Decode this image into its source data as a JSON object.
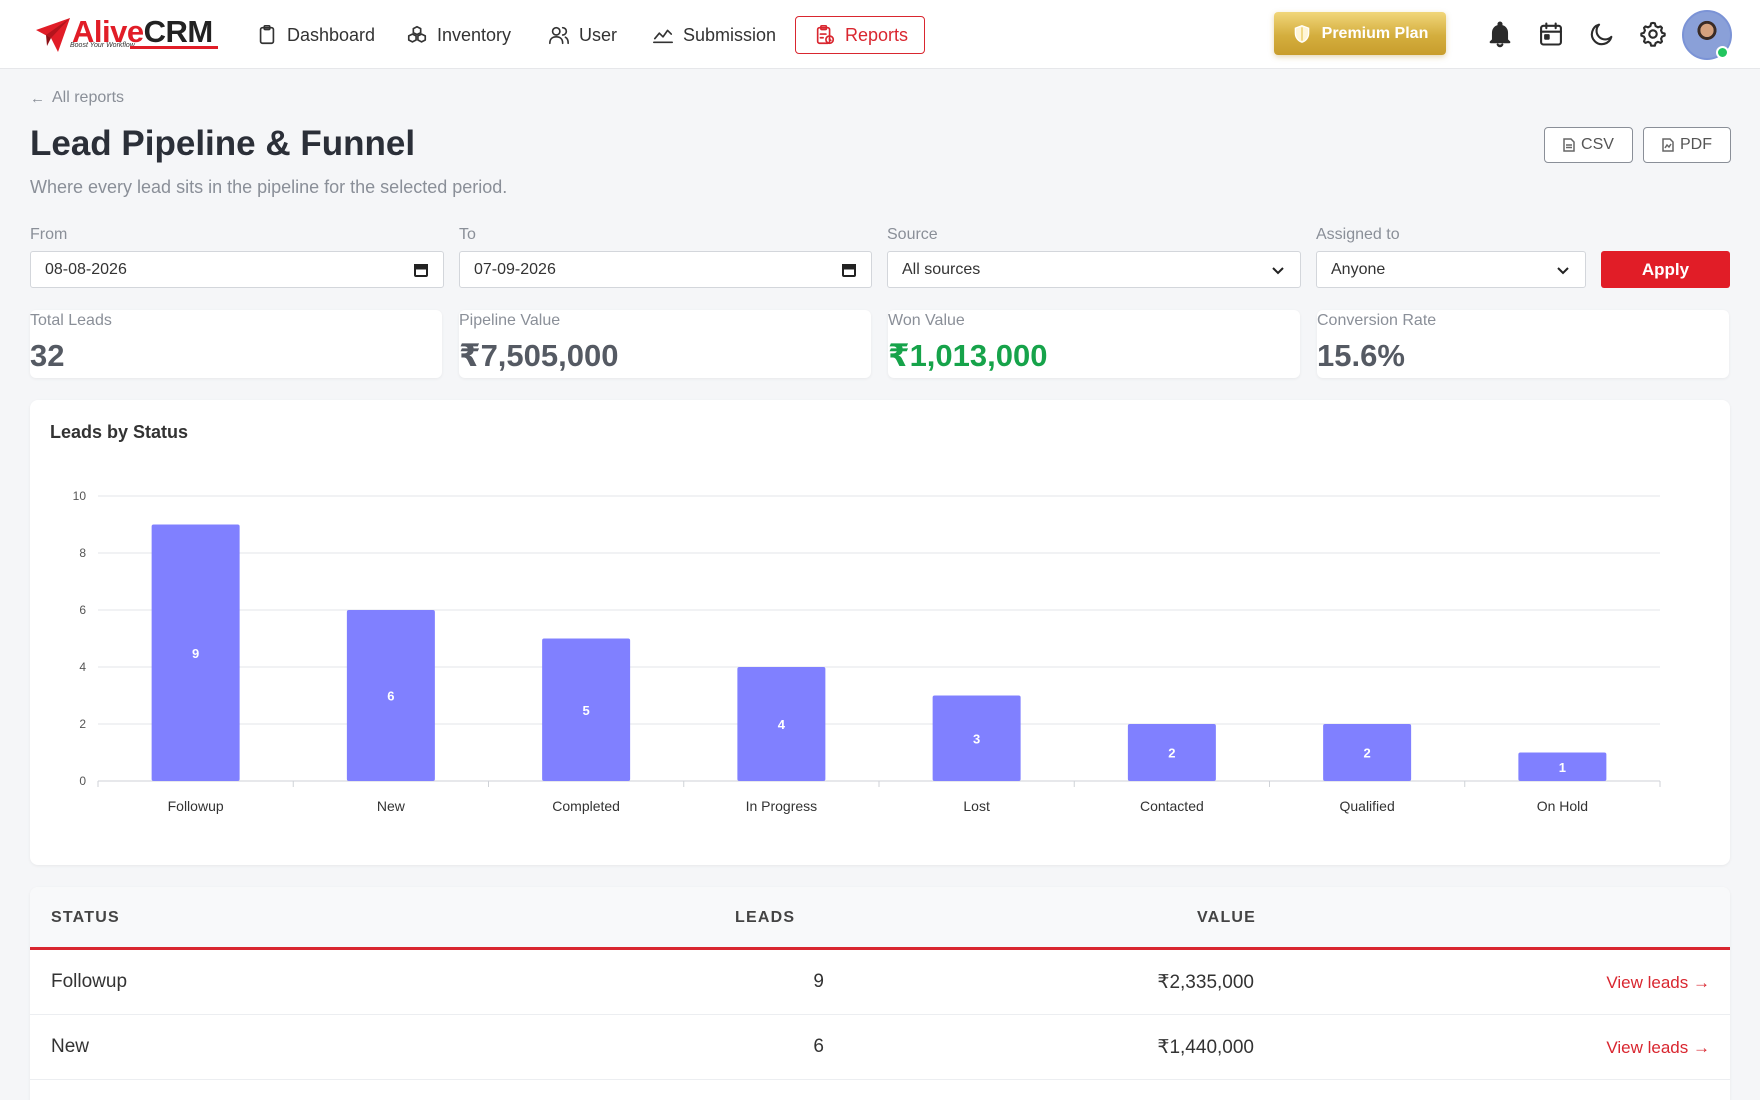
{
  "brand": {
    "name_part1": "Alive",
    "name_part2": "CRM",
    "tagline": "Boost Your Workflow"
  },
  "nav": {
    "items": [
      {
        "label": "Dashboard",
        "icon": "clipboard-icon"
      },
      {
        "label": "Inventory",
        "icon": "boxes-icon"
      },
      {
        "label": "User",
        "icon": "users-icon"
      },
      {
        "label": "Submission",
        "icon": "chart-line-icon"
      },
      {
        "label": "Reports",
        "icon": "report-icon",
        "active": true
      }
    ],
    "premium_label": "Premium Plan",
    "icons": [
      "bell-icon",
      "calendar-icon",
      "moon-icon",
      "gear-icon"
    ]
  },
  "page": {
    "back_label": "All reports",
    "title": "Lead Pipeline & Funnel",
    "subtitle": "Where every lead sits in the pipeline for the selected period.",
    "export_csv": "CSV",
    "export_pdf": "PDF"
  },
  "filters": {
    "from_label": "From",
    "from_value": "08-08-2026",
    "to_label": "To",
    "to_value": "07-09-2026",
    "source_label": "Source",
    "source_value": "All sources",
    "assigned_label": "Assigned to",
    "assigned_value": "Anyone",
    "apply_label": "Apply"
  },
  "kpis": {
    "total_leads": {
      "label": "Total Leads",
      "value": "32"
    },
    "pipeline_value": {
      "label": "Pipeline Value",
      "value": "₹7,505,000"
    },
    "won_value": {
      "label": "Won Value",
      "value": "₹1,013,000"
    },
    "conversion_rate": {
      "label": "Conversion Rate",
      "value": "15.6%"
    }
  },
  "chart_title": "Leads by Status",
  "chart_data": {
    "type": "bar",
    "title": "Leads by Status",
    "categories": [
      "Followup",
      "New",
      "Completed",
      "In Progress",
      "Lost",
      "Contacted",
      "Qualified",
      "On Hold"
    ],
    "values": [
      9,
      6,
      5,
      4,
      3,
      2,
      2,
      1
    ],
    "ylim": [
      0,
      10
    ],
    "yticks": [
      0,
      2,
      4,
      6,
      8,
      10
    ],
    "bar_color": "#8080ff",
    "grid": true,
    "data_labels": true
  },
  "table": {
    "headers": {
      "status": "STATUS",
      "leads": "LEADS",
      "value": "VALUE"
    },
    "rows": [
      {
        "status": "Followup",
        "leads": "9",
        "value": "₹2,335,000",
        "action": "View leads →"
      },
      {
        "status": "New",
        "leads": "6",
        "value": "₹1,440,000",
        "action": "View leads →"
      }
    ]
  },
  "colors": {
    "accent": "#e11d27",
    "won": "#16a34a",
    "bar": "#8080ff",
    "premium": "#d4ae3e"
  }
}
